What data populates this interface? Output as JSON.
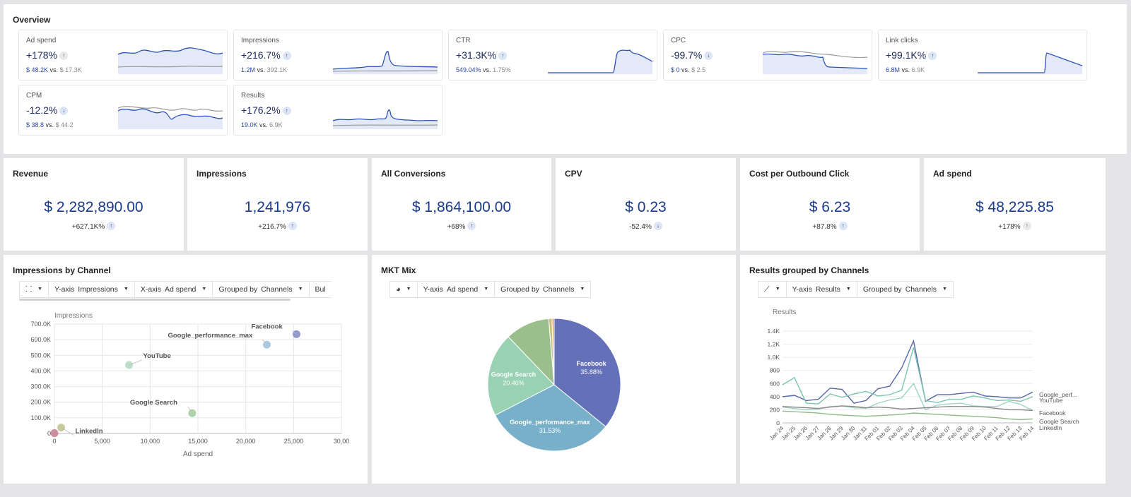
{
  "overview": {
    "title": "Overview",
    "metrics": [
      {
        "label": "Ad spend",
        "change": "+178%",
        "dir": "up",
        "dir_color": "gray",
        "current": "$ 48.2K",
        "vs": "vs.",
        "previous": "$ 17.3K"
      },
      {
        "label": "Impressions",
        "change": "+216.7%",
        "dir": "up",
        "dir_color": "blue",
        "current": "1.2M",
        "vs": "vs.",
        "previous": "392.1K"
      },
      {
        "label": "CTR",
        "change": "+31.3K%",
        "dir": "up",
        "dir_color": "blue",
        "current": "549.04%",
        "vs": "vs.",
        "previous": "1.75%"
      },
      {
        "label": "CPC",
        "change": "-99.7%",
        "dir": "down",
        "dir_color": "blue",
        "current": "$ 0",
        "vs": "vs.",
        "previous": "$ 2.5"
      },
      {
        "label": "Link clicks",
        "change": "+99.1K%",
        "dir": "up",
        "dir_color": "blue",
        "current": "6.8M",
        "vs": "vs.",
        "previous": "6.9K"
      },
      {
        "label": "CPM",
        "change": "-12.2%",
        "dir": "down",
        "dir_color": "blue",
        "current": "$ 38.8",
        "vs": "vs.",
        "previous": "$ 44.2"
      },
      {
        "label": "Results",
        "change": "+176.2%",
        "dir": "up",
        "dir_color": "blue",
        "current": "19.0K",
        "vs": "vs.",
        "previous": "6.9K"
      }
    ]
  },
  "kpis": [
    {
      "title": "Revenue",
      "value": "$ 2,282,890.00",
      "change": "+627.1K%",
      "dir": "up",
      "dir_color": "blue"
    },
    {
      "title": "Impressions",
      "value": "1,241,976",
      "change": "+216.7%",
      "dir": "up",
      "dir_color": "blue"
    },
    {
      "title": "All Conversions",
      "value": "$ 1,864,100.00",
      "change": "+68%",
      "dir": "up",
      "dir_color": "blue"
    },
    {
      "title": "CPV",
      "value": "$ 0.23",
      "change": "-52.4%",
      "dir": "down",
      "dir_color": "blue"
    },
    {
      "title": "Cost per Outbound Click",
      "value": "$ 6.23",
      "change": "+87.8%",
      "dir": "up",
      "dir_color": "blue"
    },
    {
      "title": "Ad spend",
      "value": "$ 48,225.85",
      "change": "+178%",
      "dir": "up",
      "dir_color": "gray"
    }
  ],
  "impressions_by_channel": {
    "title": "Impressions by Channel",
    "toolbar": {
      "chart_icon": "scatter-chart-icon",
      "y_key": "Y-axis",
      "y_val": "Impressions",
      "x_key": "X-axis",
      "x_val": "Ad spend",
      "g_key": "Grouped by",
      "g_val": "Channels",
      "more": "Bul"
    }
  },
  "mkt_mix": {
    "title": "MKT Mix",
    "toolbar": {
      "chart_icon": "pie-chart-icon",
      "y_key": "Y-axis",
      "y_val": "Ad spend",
      "g_key": "Grouped by",
      "g_val": "Channels"
    }
  },
  "results_by_channels": {
    "title": "Results grouped by Channels",
    "toolbar": {
      "chart_icon": "line-chart-icon",
      "y_key": "Y-axis",
      "y_val": "Results",
      "g_key": "Grouped by",
      "g_val": "Channels"
    }
  },
  "chart_data": [
    {
      "type": "scatter",
      "ylabel": "Impressions",
      "xlabel": "Ad spend",
      "xlim": [
        0,
        30000
      ],
      "ylim": [
        0,
        700000
      ],
      "x_ticks": [
        "0",
        "5,000",
        "10,000",
        "15,000",
        "20,000",
        "25,000",
        "30,00"
      ],
      "y_ticks": [
        "0",
        "100.0K",
        "200.0K",
        "300.0K",
        "400.0K",
        "500.0K",
        "600.0K",
        "700.0K"
      ],
      "points": [
        {
          "name": "Facebook",
          "x": 25300,
          "y": 635000,
          "color": "#8b95c9"
        },
        {
          "name": "Google_performance_max",
          "x": 22200,
          "y": 568000,
          "color": "#a7c7e0"
        },
        {
          "name": "YouTube",
          "x": 7800,
          "y": 438000,
          "color": "#b8dcc6"
        },
        {
          "name": "Google Search",
          "x": 14400,
          "y": 130000,
          "color": "#a9d1a6"
        },
        {
          "name": "LinkedIn",
          "x": 700,
          "y": 38000,
          "color": "#c5c79a"
        },
        {
          "name": "",
          "x": 0,
          "y": 2000,
          "color": "#c78a9a"
        }
      ]
    },
    {
      "type": "pie",
      "slices": [
        {
          "name": "Facebook",
          "pct": 35.88,
          "label": "35.88%",
          "color": "#6471b8"
        },
        {
          "name": "Google_performance_max",
          "pct": 31.53,
          "label": "31.53%",
          "color": "#78afc9"
        },
        {
          "name": "Google Search",
          "pct": 20.46,
          "label": "20.46%",
          "color": "#98d2b2"
        },
        {
          "name": "",
          "pct": 10.8,
          "label": "",
          "color": "#9abf8c"
        },
        {
          "name": "",
          "pct": 0.8,
          "label": "",
          "color": "#c9bf82"
        },
        {
          "name": "",
          "pct": 0.53,
          "label": "",
          "color": "#e3a07a"
        }
      ]
    },
    {
      "type": "line",
      "ylabel": "Results",
      "ylim": [
        0,
        1400
      ],
      "y_ticks": [
        "0",
        "200",
        "400",
        "600",
        "800",
        "1.0K",
        "1.2K",
        "1.4K"
      ],
      "x": [
        "Jan 24",
        "Jan 25",
        "Jan 26",
        "Jan 27",
        "Jan 28",
        "Jan 29",
        "Jan 30",
        "Jan 31",
        "Feb 01",
        "Feb 02",
        "Feb 03",
        "Feb 04",
        "Feb 05",
        "Feb 06",
        "Feb 07",
        "Feb 08",
        "Feb 09",
        "Feb 10",
        "Feb 11",
        "Feb 12",
        "Feb 13",
        "Feb 14"
      ],
      "series": [
        {
          "name": "Google_perf...",
          "color": "#5566a8",
          "values": [
            400,
            420,
            340,
            360,
            530,
            510,
            300,
            340,
            520,
            560,
            840,
            1250,
            330,
            430,
            430,
            450,
            470,
            410,
            400,
            380,
            380,
            470
          ]
        },
        {
          "name": "YouTube",
          "color": "#7cc4b4",
          "values": [
            580,
            690,
            300,
            290,
            440,
            390,
            440,
            480,
            410,
            430,
            500,
            1150,
            340,
            310,
            360,
            360,
            410,
            380,
            340,
            350,
            330,
            400
          ]
        },
        {
          "name": "Facebook",
          "color": "#9fd3c5",
          "values": [
            240,
            220,
            200,
            210,
            250,
            260,
            230,
            220,
            300,
            350,
            380,
            600,
            200,
            270,
            290,
            300,
            260,
            250,
            250,
            330,
            280,
            190
          ]
        },
        {
          "name": "Google Search",
          "color": "#8fb887",
          "values": [
            180,
            170,
            160,
            150,
            130,
            120,
            110,
            100,
            110,
            120,
            130,
            150,
            140,
            130,
            120,
            110,
            100,
            90,
            80,
            60,
            50,
            60
          ]
        },
        {
          "name": "LinkedIn",
          "color": "#888888",
          "values": [
            250,
            240,
            230,
            220,
            240,
            260,
            250,
            230,
            240,
            230,
            210,
            220,
            230,
            240,
            250,
            250,
            250,
            240,
            220,
            200,
            200,
            190
          ]
        }
      ]
    }
  ]
}
